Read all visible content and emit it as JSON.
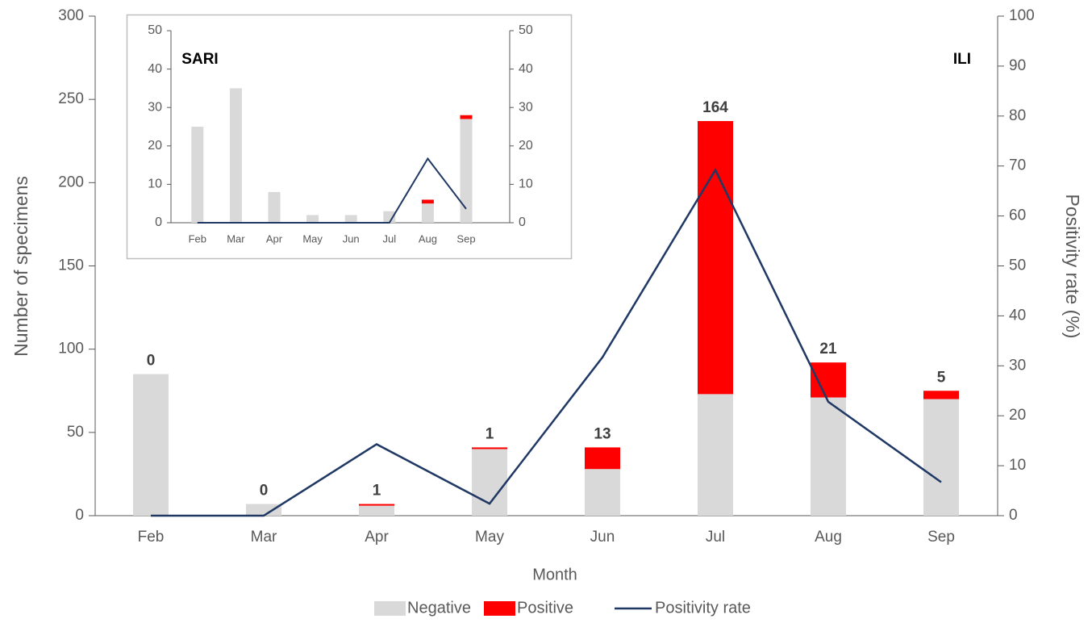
{
  "chart_data": [
    {
      "type": "bar",
      "stacked": true,
      "annotation": "ILI",
      "x_label": "Month",
      "y_label": "Number of specimens",
      "y2_label": "Positivity rate (%)",
      "categories": [
        "Feb",
        "Mar",
        "Apr",
        "May",
        "Jun",
        "Jul",
        "Aug",
        "Sep"
      ],
      "series": [
        {
          "name": "Negative",
          "color": "#d9d9d9",
          "values": [
            85,
            7,
            6,
            40,
            28,
            73,
            71,
            70
          ]
        },
        {
          "name": "Positive",
          "color": "#ff0000",
          "values": [
            0,
            0,
            1,
            1,
            13,
            164,
            21,
            5
          ],
          "data_labels": true
        },
        {
          "name": "Positivity rate",
          "type": "line",
          "axis": "y2",
          "color": "#1f3864",
          "values": [
            0,
            0,
            14.3,
            2.4,
            31.7,
            69.2,
            22.8,
            6.7
          ]
        }
      ],
      "ylim": [
        0,
        300
      ],
      "yticks": [
        0,
        50,
        100,
        150,
        200,
        250,
        300
      ],
      "y2lim": [
        0,
        100
      ],
      "y2ticks": [
        0,
        10,
        20,
        30,
        40,
        50,
        60,
        70,
        80,
        90,
        100
      ],
      "legend": "bottom"
    },
    {
      "type": "bar",
      "stacked": true,
      "annotation": "SARI",
      "categories": [
        "Feb",
        "Mar",
        "Apr",
        "May",
        "Jun",
        "Jul",
        "Aug",
        "Sep"
      ],
      "series": [
        {
          "color": "#d9d9d9",
          "values": [
            25,
            35,
            8,
            2,
            2,
            3,
            5,
            27
          ]
        },
        {
          "color": "#ff0000",
          "values": [
            0,
            0,
            0,
            0,
            0,
            0,
            1,
            1
          ]
        },
        {
          "type": "line",
          "axis": "y2",
          "color": "#1f3864",
          "values": [
            0,
            0,
            0,
            0,
            0,
            0,
            16.7,
            3.6
          ]
        }
      ],
      "ylim": [
        0,
        50
      ],
      "yticks": [
        0,
        10,
        20,
        30,
        40,
        50
      ],
      "y2lim": [
        0,
        50
      ],
      "y2ticks": [
        0,
        10,
        20,
        30,
        40,
        50
      ]
    }
  ]
}
